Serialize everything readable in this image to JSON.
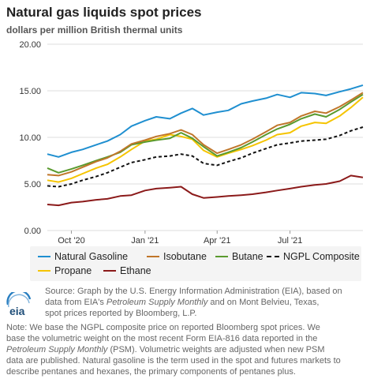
{
  "header": {
    "title": "Natural gas liquids spot prices",
    "subtitle": "dollars per million British thermal units"
  },
  "source": {
    "logo_text": "eia",
    "line1": "Source: Graph by the U.S. Energy Information Administration (EIA), based on",
    "line2a": "data from EIA's ",
    "line2b": "Petroleum Supply Monthly",
    "line2c": " and on Mont Belvieu, Texas,",
    "line3": "spot prices reported by Bloomberg, L.P."
  },
  "note": {
    "p1": "Note: We base the NGPL composite price on reported Bloomberg spot prices. We",
    "p2": "base the volumetric weight on the most recent Form EIA-816 data reported in the",
    "p3a": "Petroleum Supply Monthly",
    "p3b": " (PSM). Volumetric weights are adjusted when new PSM",
    "p4": "data are published. Natural gasoline is the term used in the spot and futures markets to",
    "p5": "describe pentanes and hexanes, the primary components of pentanes plus."
  },
  "colors": {
    "natural_gasoline": "#1f8fd0",
    "isobutane": "#c0762a",
    "butane": "#5a9a2e",
    "ngpl_composite": "#111111",
    "propane": "#f5c400",
    "ethane": "#8b1a1a",
    "grid": "#dddddd",
    "axis_text": "#333333"
  },
  "chart_data": {
    "type": "line",
    "title": "Natural gas liquids spot prices",
    "subtitle": "dollars per million British thermal units",
    "xlabel": "",
    "ylabel": "",
    "x_ticks": [
      "Oct '20",
      "Jan '21",
      "Apr '21",
      "Jul '21"
    ],
    "y_ticks": [
      "0.00",
      "5.00",
      "10.00",
      "15.00",
      "20.00"
    ],
    "ylim": [
      0,
      20
    ],
    "xlim": [
      "2020-09-01",
      "2021-09-30"
    ],
    "grid": true,
    "legend_position": "bottom",
    "x": [
      "2020-09-01",
      "2020-09-15",
      "2020-10-01",
      "2020-10-15",
      "2020-11-01",
      "2020-11-15",
      "2020-12-01",
      "2020-12-15",
      "2021-01-01",
      "2021-01-15",
      "2021-02-01",
      "2021-02-15",
      "2021-03-01",
      "2021-03-15",
      "2021-04-01",
      "2021-04-15",
      "2021-05-01",
      "2021-05-15",
      "2021-06-01",
      "2021-06-15",
      "2021-07-01",
      "2021-07-15",
      "2021-08-01",
      "2021-08-15",
      "2021-09-01",
      "2021-09-15",
      "2021-09-30"
    ],
    "series": [
      {
        "name": "Natural Gasoline",
        "color_key": "natural_gasoline",
        "dash": "",
        "values": [
          8.2,
          7.9,
          8.4,
          8.7,
          9.2,
          9.6,
          10.3,
          11.2,
          11.8,
          12.2,
          12.0,
          12.6,
          13.1,
          12.4,
          12.7,
          12.9,
          13.6,
          13.9,
          14.2,
          14.6,
          14.3,
          14.8,
          14.7,
          14.5,
          14.9,
          15.2,
          15.6
        ]
      },
      {
        "name": "Isobutane",
        "color_key": "isobutane",
        "dash": "",
        "values": [
          6.0,
          5.9,
          6.3,
          6.8,
          7.4,
          7.8,
          8.5,
          9.3,
          9.7,
          10.1,
          10.4,
          10.8,
          10.3,
          9.2,
          8.3,
          8.7,
          9.2,
          9.8,
          10.6,
          11.3,
          11.6,
          12.3,
          12.8,
          12.6,
          13.3,
          14.0,
          14.8
        ]
      },
      {
        "name": "Butane",
        "color_key": "butane",
        "dash": "",
        "values": [
          6.7,
          6.2,
          6.6,
          7.0,
          7.5,
          7.9,
          8.4,
          9.2,
          9.5,
          9.7,
          9.9,
          10.5,
          9.9,
          9.0,
          8.0,
          8.4,
          8.9,
          9.5,
          10.3,
          10.9,
          11.4,
          12.0,
          12.5,
          12.2,
          13.0,
          13.8,
          14.6
        ]
      },
      {
        "name": "NGPL Composite",
        "color_key": "ngpl_composite",
        "dash": "4,3",
        "values": [
          4.8,
          4.7,
          5.0,
          5.4,
          5.8,
          6.2,
          6.8,
          7.3,
          7.6,
          7.9,
          8.0,
          8.2,
          8.0,
          7.2,
          7.0,
          7.4,
          7.8,
          8.3,
          8.8,
          9.2,
          9.4,
          9.6,
          9.7,
          9.8,
          10.2,
          10.7,
          11.1
        ]
      },
      {
        "name": "Propane",
        "color_key": "propane",
        "dash": "",
        "values": [
          5.4,
          5.2,
          5.6,
          6.1,
          6.7,
          7.1,
          7.9,
          8.7,
          9.6,
          9.8,
          10.3,
          10.1,
          9.8,
          8.6,
          7.9,
          8.3,
          8.7,
          9.1,
          9.7,
          10.3,
          10.5,
          11.2,
          11.6,
          11.5,
          12.3,
          13.2,
          14.3
        ]
      },
      {
        "name": "Ethane",
        "color_key": "ethane",
        "dash": "",
        "values": [
          2.8,
          2.7,
          3.0,
          3.1,
          3.3,
          3.4,
          3.7,
          3.8,
          4.3,
          4.5,
          4.6,
          4.7,
          3.9,
          3.5,
          3.6,
          3.7,
          3.8,
          3.9,
          4.1,
          4.3,
          4.5,
          4.7,
          4.9,
          5.0,
          5.3,
          5.9,
          5.7
        ]
      }
    ]
  }
}
